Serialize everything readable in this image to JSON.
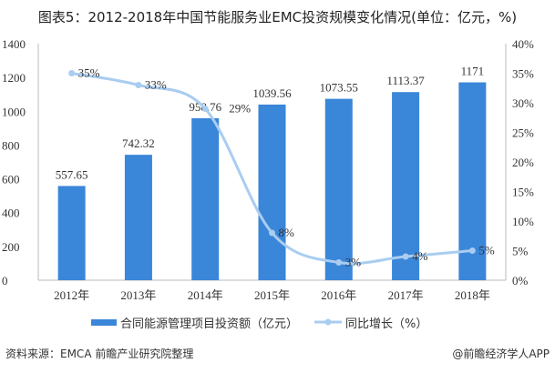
{
  "chart_data": {
    "type": "bar+line",
    "title": "图表5：2012-2018年中国节能服务业EMC投资规模变化情况(单位：亿元，%)",
    "categories": [
      "2012年",
      "2013年",
      "2014年",
      "2015年",
      "2016年",
      "2017年",
      "2018年"
    ],
    "series": [
      {
        "name": "合同能源管理项目投资额（亿元）",
        "type": "bar",
        "axis": "left",
        "color": "#3a86d8",
        "values": [
          557.65,
          742.32,
          958.76,
          1039.56,
          1073.55,
          1113.37,
          1171
        ],
        "labels": [
          "557.65",
          "742.32",
          "958.76",
          "1039.56",
          "1073.55",
          "1113.37",
          "1171"
        ]
      },
      {
        "name": "同比增长（%）",
        "type": "line",
        "axis": "right",
        "color": "#a9cdf0",
        "values": [
          35,
          33,
          29,
          8,
          3,
          4,
          5
        ],
        "labels": [
          "35%",
          "33%",
          "29%",
          "8%",
          "3%",
          "4%",
          "5%"
        ]
      }
    ],
    "y_left": {
      "range": [
        0,
        1400
      ],
      "ticks": [
        "0",
        "200",
        "400",
        "600",
        "800",
        "1000",
        "1200",
        "1400"
      ]
    },
    "y_right": {
      "range": [
        0,
        40
      ],
      "ticks": [
        "0%",
        "5%",
        "10%",
        "15%",
        "20%",
        "25%",
        "30%",
        "35%",
        "40%"
      ]
    },
    "grid": false,
    "legend_placement": "bottom"
  },
  "footer": {
    "source": "资料来源：EMCA 前瞻产业研究院整理",
    "credit": "@前瞻经济学人APP"
  }
}
